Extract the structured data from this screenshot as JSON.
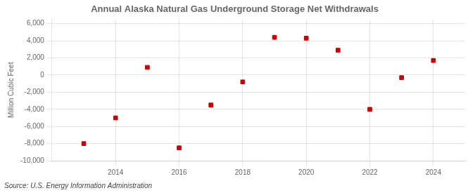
{
  "chart_data": {
    "type": "scatter",
    "title": "Annual Alaska Natural Gas Underground Storage Net Withdrawals",
    "ylabel": "Million Cubic Feet",
    "annotations": [
      "Source: U.S. Energy Information Administration"
    ],
    "x": [
      2013,
      2014,
      2015,
      2016,
      2017,
      2018,
      2019,
      2020,
      2021,
      2022,
      2023,
      2024
    ],
    "values": [
      -8000,
      -5000,
      900,
      -8500,
      -3500,
      -800,
      4400,
      4300,
      2900,
      -4000,
      -300,
      1700
    ],
    "color": "#cc0000",
    "marker": "square",
    "xlim": [
      2012,
      2025
    ],
    "xticks": [
      2014,
      2016,
      2018,
      2020,
      2022,
      2024
    ],
    "ylim": [
      -10000,
      6500
    ],
    "yticks": [
      {
        "value": 6000,
        "label": "6,000"
      },
      {
        "value": 4000,
        "label": "4,000"
      },
      {
        "value": 2000,
        "label": "2,000"
      },
      0,
      {
        "value": -2000,
        "label": "-2,000"
      },
      {
        "value": -4000,
        "label": "-4,000"
      },
      {
        "value": -6000,
        "label": "-6,000"
      },
      {
        "value": -8000,
        "label": "-8,000"
      },
      {
        "value": -10000,
        "label": "-10,000"
      }
    ],
    "grid": true
  }
}
